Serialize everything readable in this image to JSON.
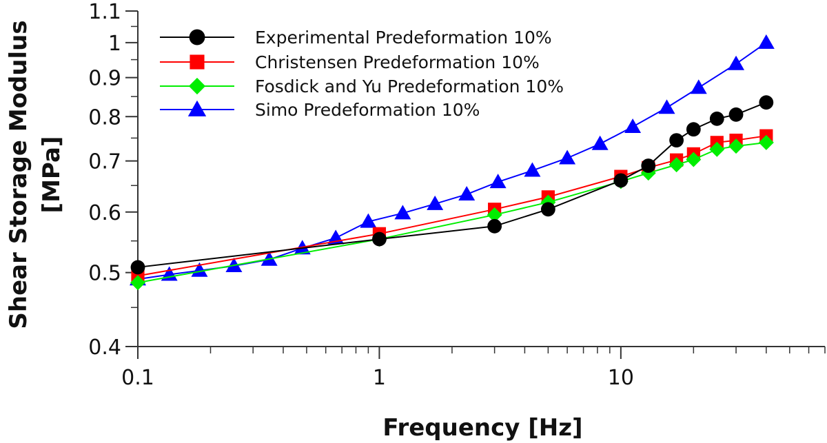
{
  "chart_data": {
    "type": "line",
    "title": "",
    "xlabel": "Frequency [Hz]",
    "ylabel_line1": "Shear Storage Modulus",
    "ylabel_line2": "[MPa]",
    "xscale": "log",
    "yscale": "log",
    "xlim": [
      0.1,
      70
    ],
    "ylim": [
      0.4,
      1.1
    ],
    "x_ticks": [
      {
        "value": 0.1,
        "label": "0.1"
      },
      {
        "value": 1,
        "label": "1"
      },
      {
        "value": 10,
        "label": "10"
      }
    ],
    "y_ticks": [
      {
        "value": 0.4,
        "label": "0.4"
      },
      {
        "value": 0.5,
        "label": "0.5"
      },
      {
        "value": 0.6,
        "label": "0.6"
      },
      {
        "value": 0.7,
        "label": "0.7"
      },
      {
        "value": 0.8,
        "label": "0.8"
      },
      {
        "value": 0.9,
        "label": "0.9"
      },
      {
        "value": 1.0,
        "label": "1"
      },
      {
        "value": 1.1,
        "label": "1.1"
      }
    ],
    "grid": false,
    "legend_position": "top-left",
    "series": [
      {
        "name": "Experimental Predeformation 10%",
        "color": "#000000",
        "marker": "circle",
        "x": [
          0.1,
          1,
          3,
          5,
          10,
          13,
          17,
          20,
          25,
          30,
          40
        ],
        "y": [
          0.508,
          0.553,
          0.575,
          0.605,
          0.66,
          0.69,
          0.745,
          0.77,
          0.795,
          0.805,
          0.835
        ]
      },
      {
        "name": "Christensen Predeformation 10%",
        "color": "#ff0000",
        "marker": "square",
        "x": [
          0.1,
          1,
          3,
          5,
          10,
          13,
          17,
          20,
          25,
          30,
          40
        ],
        "y": [
          0.495,
          0.562,
          0.605,
          0.628,
          0.668,
          0.686,
          0.702,
          0.715,
          0.74,
          0.745,
          0.755
        ]
      },
      {
        "name": "Fosdick and Yu Predeformation 10%",
        "color": "#00ee00",
        "marker": "diamond",
        "x": [
          0.1,
          1,
          3,
          5,
          10,
          13,
          17,
          20,
          25,
          30,
          40
        ],
        "y": [
          0.485,
          0.553,
          0.595,
          0.618,
          0.658,
          0.675,
          0.692,
          0.703,
          0.725,
          0.732,
          0.74
        ]
      },
      {
        "name": "Simo Predeformation 10%",
        "color": "#0000ff",
        "marker": "triangle",
        "x": [
          0.1,
          0.135,
          0.18,
          0.25,
          0.35,
          0.48,
          0.66,
          0.9,
          1.25,
          1.7,
          2.3,
          3.1,
          4.3,
          6,
          8.2,
          11.2,
          15.5,
          21,
          30,
          40
        ],
        "y": [
          0.49,
          0.497,
          0.503,
          0.51,
          0.52,
          0.538,
          0.555,
          0.583,
          0.598,
          0.615,
          0.633,
          0.657,
          0.68,
          0.706,
          0.737,
          0.776,
          0.822,
          0.873,
          0.938,
          1.0
        ]
      }
    ]
  }
}
